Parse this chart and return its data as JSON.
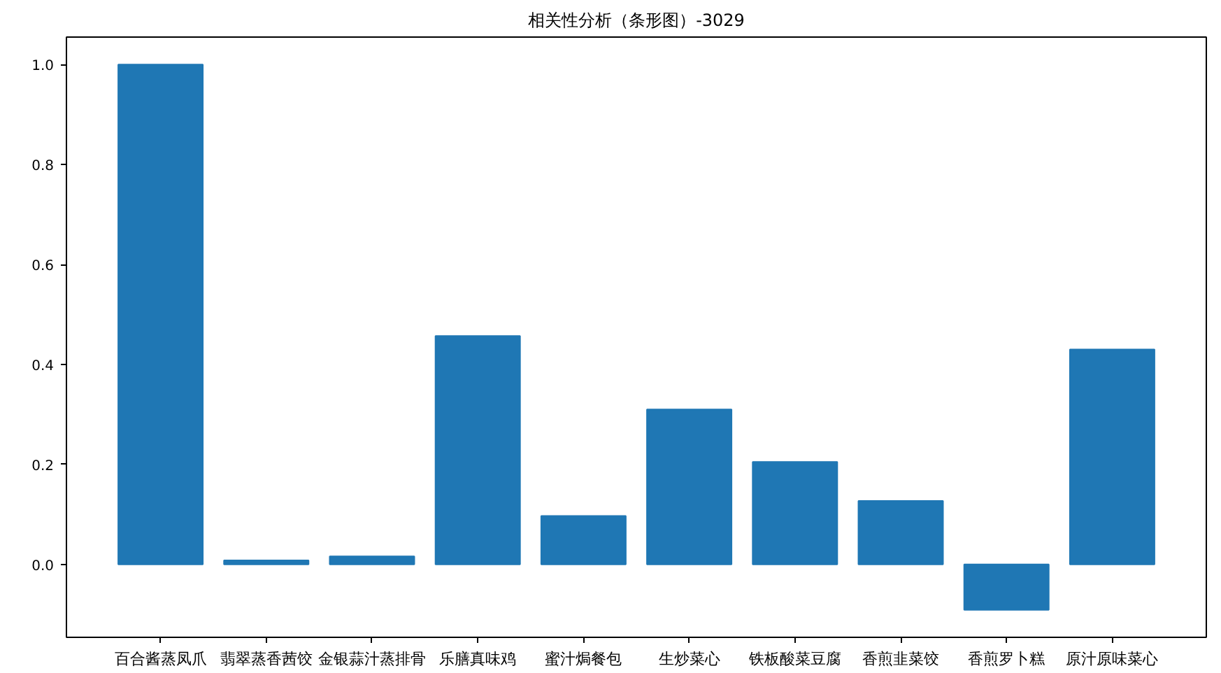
{
  "chart_data": {
    "type": "bar",
    "title": "相关性分析（条形图）-3029",
    "categories": [
      "百合酱蒸凤爪",
      "翡翠蒸香茜饺",
      "金银蒜汁蒸排骨",
      "乐膳真味鸡",
      "蜜汁焗餐包",
      "生炒菜心",
      "铁板酸菜豆腐",
      "香煎韭菜饺",
      "香煎罗卜糕",
      "原汁原味菜心"
    ],
    "values": [
      1.0,
      0.008,
      0.016,
      0.457,
      0.097,
      0.31,
      0.205,
      0.127,
      -0.091,
      0.43
    ],
    "color": "#1f77b4",
    "ylim": [
      -0.146,
      1.055
    ],
    "yticks": [
      {
        "value": 0,
        "label": "0.0"
      },
      0.2,
      0.4,
      0.6,
      0.8,
      {
        "value": 1,
        "label": "1.0"
      }
    ]
  }
}
